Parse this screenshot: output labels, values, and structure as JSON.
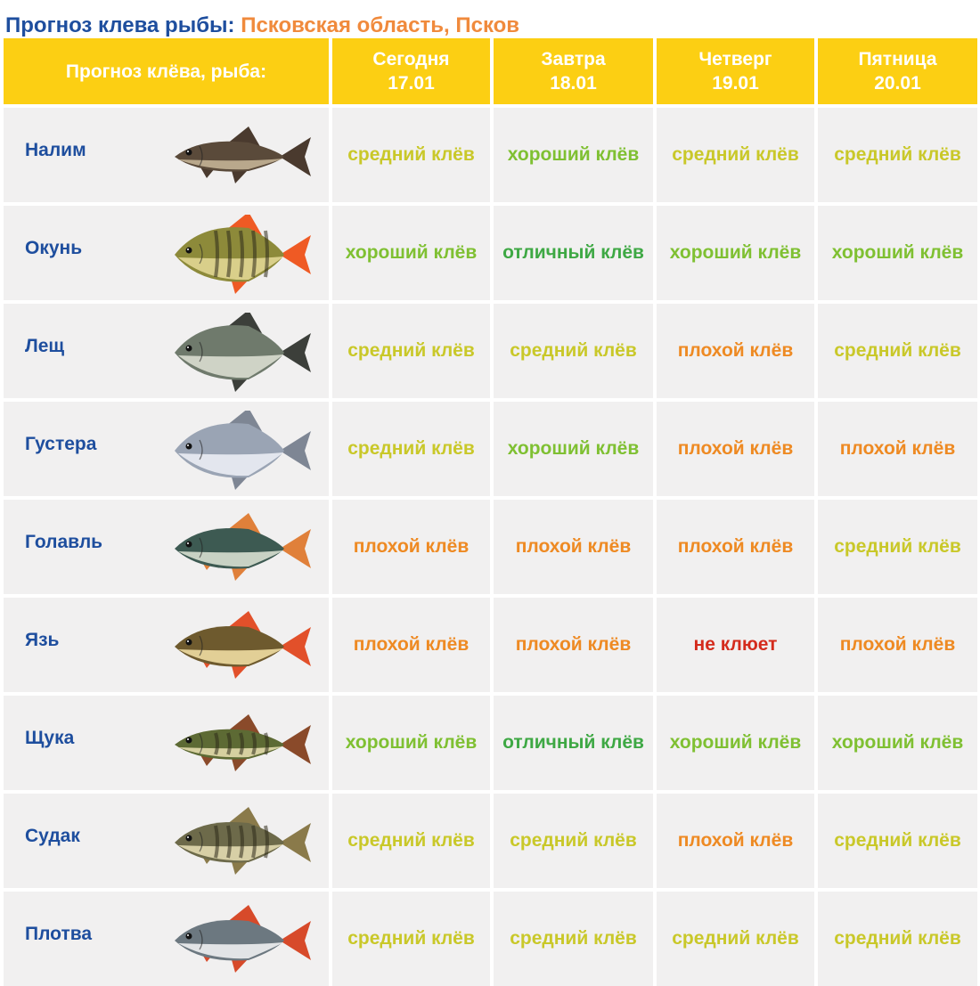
{
  "title": {
    "main": "Прогноз клева рыбы:",
    "region": "Псковская область, Псков"
  },
  "header": {
    "label": "Прогноз клёва, рыба:",
    "days": [
      {
        "day": "Сегодня",
        "date": "17.01"
      },
      {
        "day": "Завтра",
        "date": "18.01"
      },
      {
        "day": "Четверг",
        "date": "19.01"
      },
      {
        "day": "Пятница",
        "date": "20.01"
      }
    ]
  },
  "colors": {
    "header_bg": "#fccf13",
    "fish_name": "#1e4e9e",
    "region": "#f08a3c",
    "excellent": "#3ea844",
    "good": "#7fc032",
    "average": "#c9c829",
    "poor": "#ee8a23",
    "none": "#d42b1c"
  },
  "fish": [
    {
      "name": "Налим",
      "icon": "burbot-icon",
      "forecast": [
        {
          "text": "средний клёв",
          "level": "average"
        },
        {
          "text": "хороший клёв",
          "level": "good"
        },
        {
          "text": "средний клёв",
          "level": "average"
        },
        {
          "text": "средний клёв",
          "level": "average"
        }
      ]
    },
    {
      "name": "Окунь",
      "icon": "perch-icon",
      "forecast": [
        {
          "text": "хороший клёв",
          "level": "good"
        },
        {
          "text": "отличный клёв",
          "level": "excellent"
        },
        {
          "text": "хороший клёв",
          "level": "good"
        },
        {
          "text": "хороший клёв",
          "level": "good"
        }
      ]
    },
    {
      "name": "Лещ",
      "icon": "bream-icon",
      "forecast": [
        {
          "text": "средний клёв",
          "level": "average"
        },
        {
          "text": "средний клёв",
          "level": "average"
        },
        {
          "text": "плохой клёв",
          "level": "poor"
        },
        {
          "text": "средний клёв",
          "level": "average"
        }
      ]
    },
    {
      "name": "Густера",
      "icon": "silver-bream-icon",
      "forecast": [
        {
          "text": "средний клёв",
          "level": "average"
        },
        {
          "text": "хороший клёв",
          "level": "good"
        },
        {
          "text": "плохой клёв",
          "level": "poor"
        },
        {
          "text": "плохой клёв",
          "level": "poor"
        }
      ]
    },
    {
      "name": "Голавль",
      "icon": "chub-icon",
      "forecast": [
        {
          "text": "плохой клёв",
          "level": "poor"
        },
        {
          "text": "плохой клёв",
          "level": "poor"
        },
        {
          "text": "плохой клёв",
          "level": "poor"
        },
        {
          "text": "средний клёв",
          "level": "average"
        }
      ]
    },
    {
      "name": "Язь",
      "icon": "ide-icon",
      "forecast": [
        {
          "text": "плохой клёв",
          "level": "poor"
        },
        {
          "text": "плохой клёв",
          "level": "poor"
        },
        {
          "text": "не клюет",
          "level": "none"
        },
        {
          "text": "плохой клёв",
          "level": "poor"
        }
      ]
    },
    {
      "name": "Щука",
      "icon": "pike-icon",
      "forecast": [
        {
          "text": "хороший клёв",
          "level": "good"
        },
        {
          "text": "отличный клёв",
          "level": "excellent"
        },
        {
          "text": "хороший клёв",
          "level": "good"
        },
        {
          "text": "хороший клёв",
          "level": "good"
        }
      ]
    },
    {
      "name": "Судак",
      "icon": "zander-icon",
      "forecast": [
        {
          "text": "средний клёв",
          "level": "average"
        },
        {
          "text": "средний клёв",
          "level": "average"
        },
        {
          "text": "плохой клёв",
          "level": "poor"
        },
        {
          "text": "средний клёв",
          "level": "average"
        }
      ]
    },
    {
      "name": "Плотва",
      "icon": "roach-icon",
      "forecast": [
        {
          "text": "средний клёв",
          "level": "average"
        },
        {
          "text": "средний клёв",
          "level": "average"
        },
        {
          "text": "средний клёв",
          "level": "average"
        },
        {
          "text": "средний клёв",
          "level": "average"
        }
      ]
    }
  ]
}
